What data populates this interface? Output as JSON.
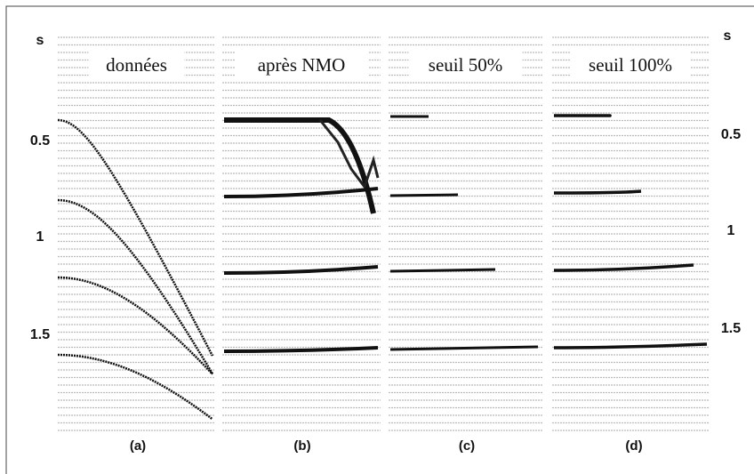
{
  "axis_left": {
    "unit": "s",
    "ticks": [
      "0.5",
      "1",
      "1.5"
    ]
  },
  "axis_right": {
    "unit": "s",
    "ticks": [
      "0.5",
      "1",
      "1.5"
    ]
  },
  "panels": [
    {
      "title": "données",
      "caption": "(a)"
    },
    {
      "title": "après NMO",
      "caption": "(b)"
    },
    {
      "title": "seuil 50%",
      "caption": "(c)"
    },
    {
      "title": "seuil 100%",
      "caption": "(d)"
    }
  ]
}
